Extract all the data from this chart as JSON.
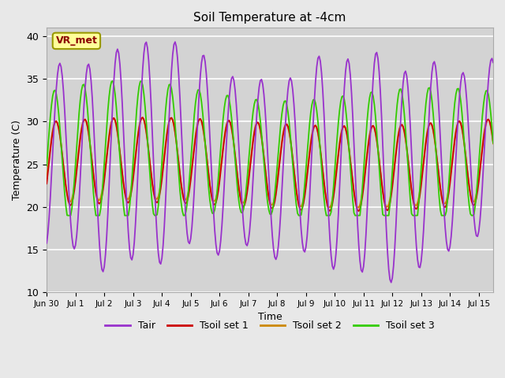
{
  "title": "Soil Temperature at -4cm",
  "xlabel": "Time",
  "ylabel": "Temperature (C)",
  "ylim": [
    10,
    41
  ],
  "xlim_days": 15.5,
  "background_color": "#e8e8e8",
  "plot_bg_color": "#d3d3d3",
  "grid_color": "#ffffff",
  "colors": {
    "Tair": "#9932CC",
    "Tsoil1": "#cc0000",
    "Tsoil2": "#cc8800",
    "Tsoil3": "#33cc00"
  },
  "legend_labels": [
    "Tair",
    "Tsoil set 1",
    "Tsoil set 2",
    "Tsoil set 3"
  ],
  "annotation_text": "VR_met",
  "annotation_color": "#8B0000",
  "annotation_bg": "#ffff99",
  "tick_labels": [
    "Jun 30",
    "Jul 1",
    "Jul 2",
    "Jul 3",
    "Jul 4",
    "Jul 5",
    "Jul 6",
    "Jul 7",
    "Jul 8",
    "Jul 9",
    "Jul 10",
    "Jul 11",
    "Jul 12",
    "Jul 13",
    "Jul 14",
    "Jul 15"
  ],
  "yticks": [
    10,
    15,
    20,
    25,
    30,
    35,
    40
  ]
}
